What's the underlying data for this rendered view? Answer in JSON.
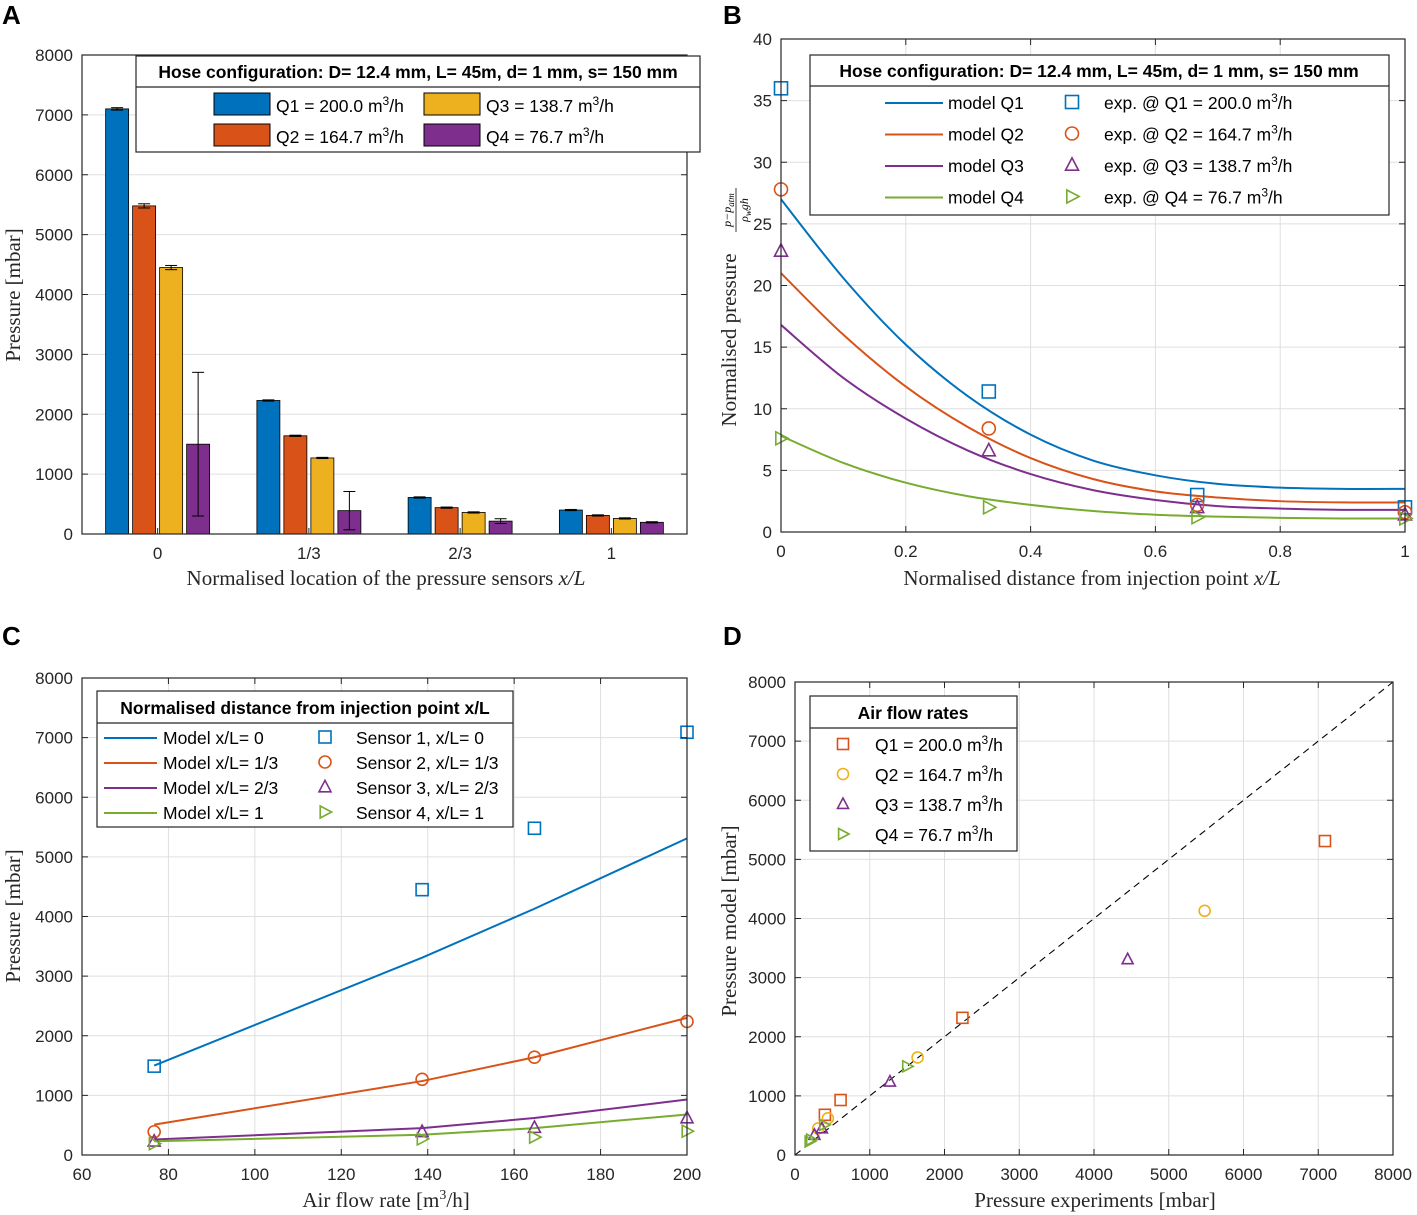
{
  "chart_data": [
    {
      "panel": "A",
      "type": "bar",
      "xlabel": "Normalised location of the pressure sensors",
      "xlabel_math": "x/L",
      "ylabel": "Pressure [mbar]",
      "ylim": [
        0,
        8000
      ],
      "yticks": [
        0,
        1000,
        2000,
        3000,
        4000,
        5000,
        6000,
        7000,
        8000
      ],
      "categories": [
        "0",
        "1/3",
        "2/3",
        "1"
      ],
      "legend_title": "Hose configuration: D= 12.4 mm, L= 45m, d= 1 mm, s= 150 mm",
      "series": [
        {
          "name": "Q1 = 200.0",
          "unit": "m",
          "sup": "3",
          "unit_tail": "/h",
          "color": "#0072BD",
          "values": [
            7100,
            2230,
            610,
            400
          ],
          "errors": [
            20,
            10,
            10,
            10
          ]
        },
        {
          "name": "Q2 = 164.7",
          "unit": "m",
          "sup": "3",
          "unit_tail": "/h",
          "color": "#D95319",
          "values": [
            5480,
            1640,
            440,
            310
          ],
          "errors": [
            35,
            10,
            10,
            10
          ]
        },
        {
          "name": "Q3 = 138.7",
          "unit": "m",
          "sup": "3",
          "unit_tail": "/h",
          "color": "#EDB120",
          "values": [
            4450,
            1270,
            360,
            260
          ],
          "errors": [
            35,
            10,
            10,
            10
          ]
        },
        {
          "name": "Q4 = 76.7",
          "unit": "m",
          "sup": "3",
          "unit_tail": "/h",
          "color": "#7E2F8E",
          "values": [
            1500,
            390,
            215,
            195
          ],
          "errors": [
            1200,
            320,
            40,
            10
          ]
        }
      ]
    },
    {
      "panel": "B",
      "type": "line",
      "xlabel": "Normalised distance from injection point",
      "xlabel_math": "x/L",
      "ylabel": "Normalised pressure",
      "xlim": [
        0,
        1
      ],
      "ylim": [
        0,
        40
      ],
      "xticks": [
        0,
        0.2,
        0.4,
        0.6,
        0.8,
        1
      ],
      "xticklabels": [
        "0",
        "0.2",
        "0.4",
        "0.6",
        "0.8",
        "1"
      ],
      "yticks": [
        0,
        5,
        10,
        15,
        20,
        25,
        30,
        35,
        40
      ],
      "legend_title": "Hose configuration: D= 12.4 mm, L= 45m, d= 1 mm, s= 150 mm",
      "model_x": [
        0,
        0.1,
        0.2,
        0.3,
        0.4,
        0.5,
        0.6,
        0.7,
        0.8,
        0.9,
        1.0
      ],
      "series": [
        {
          "name": "model Q1",
          "color": "#0072BD",
          "model_y": [
            27.0,
            20.6,
            15.2,
            11.0,
            7.9,
            5.8,
            4.6,
            3.9,
            3.6,
            3.5,
            3.5
          ],
          "exp_name": "exp. @ Q1 = 200.0",
          "marker": "square",
          "exp_x": [
            0,
            0.333,
            0.667,
            1.0
          ],
          "exp_y": [
            36.0,
            11.4,
            3.0,
            2.0
          ]
        },
        {
          "name": "model Q2",
          "color": "#D95319",
          "model_y": [
            21.0,
            16.0,
            11.8,
            8.5,
            6.0,
            4.3,
            3.3,
            2.8,
            2.5,
            2.4,
            2.4
          ],
          "exp_name": "exp. @ Q2 = 164.7",
          "marker": "circle",
          "exp_x": [
            0,
            0.333,
            0.667,
            1.0
          ],
          "exp_y": [
            27.8,
            8.4,
            2.2,
            1.6
          ]
        },
        {
          "name": "model Q3",
          "color": "#7E2F8E",
          "model_y": [
            16.8,
            12.5,
            9.2,
            6.6,
            4.7,
            3.4,
            2.6,
            2.1,
            1.9,
            1.8,
            1.8
          ],
          "exp_name": "exp. @ Q3 = 138.7",
          "marker": "triangle-up",
          "exp_x": [
            0,
            0.333,
            0.667,
            1.0
          ],
          "exp_y": [
            22.8,
            6.6,
            2.0,
            1.4
          ]
        },
        {
          "name": "model Q4",
          "color": "#77AC30",
          "model_y": [
            7.8,
            5.6,
            4.0,
            2.9,
            2.2,
            1.7,
            1.4,
            1.25,
            1.15,
            1.1,
            1.1
          ],
          "exp_name": "exp. @ Q4 = 76.7",
          "marker": "triangle-right",
          "exp_x": [
            0,
            0.333,
            0.667,
            1.0
          ],
          "exp_y": [
            7.6,
            2.0,
            1.2,
            1.1
          ]
        }
      ]
    },
    {
      "panel": "C",
      "type": "line",
      "xlabel": "Air flow rate",
      "xlabel_unit": "[m",
      "xlabel_sup": "3",
      "xlabel_tail": "/h]",
      "ylabel": "Pressure [mbar]",
      "xlim": [
        60,
        200
      ],
      "ylim": [
        0,
        8000
      ],
      "xticks": [
        60,
        80,
        100,
        120,
        140,
        160,
        180,
        200
      ],
      "yticks": [
        0,
        1000,
        2000,
        3000,
        4000,
        5000,
        6000,
        7000,
        8000
      ],
      "legend_title": "Normalised distance from injection point  x/L",
      "x": [
        76.7,
        138.7,
        164.7,
        200.0
      ],
      "series": [
        {
          "name": "Model x/L= 0",
          "sensor_name": "Sensor 1, x/L= 0",
          "color": "#0072BD",
          "marker": "square",
          "model": [
            1500,
            3310,
            4130,
            5310
          ],
          "sensor": [
            1490,
            4450,
            5480,
            7090
          ]
        },
        {
          "name": "Model x/L= 1/3",
          "sensor_name": "Sensor 2, x/L= 1/3",
          "color": "#D95319",
          "marker": "circle",
          "model": [
            510,
            1240,
            1640,
            2300
          ],
          "sensor": [
            390,
            1270,
            1640,
            2240
          ]
        },
        {
          "name": "Model x/L= 2/3",
          "sensor_name": "Sensor 3, x/L= 2/3",
          "color": "#7E2F8E",
          "marker": "triangle-up",
          "model": [
            260,
            450,
            620,
            930
          ],
          "sensor": [
            230,
            390,
            460,
            620
          ]
        },
        {
          "name": "Model x/L= 1",
          "sensor_name": "Sensor 4, x/L= 1",
          "color": "#77AC30",
          "marker": "triangle-right",
          "model": [
            230,
            340,
            450,
            680
          ],
          "sensor": [
            190,
            270,
            300,
            400
          ]
        }
      ]
    },
    {
      "panel": "D",
      "type": "scatter",
      "xlabel": "Pressure experiments [mbar]",
      "ylabel": "Pressure model [mbar]",
      "xlim": [
        0,
        8000
      ],
      "ylim": [
        0,
        8000
      ],
      "xticks": [
        0,
        1000,
        2000,
        3000,
        4000,
        5000,
        6000,
        7000,
        8000
      ],
      "yticks": [
        0,
        1000,
        2000,
        3000,
        4000,
        5000,
        6000,
        7000,
        8000
      ],
      "legend_title": "Air flow rates",
      "reference_line": "y = x",
      "series": [
        {
          "name": "Q1 = 200.0",
          "color": "#D95319",
          "marker": "square",
          "x": [
            7090,
            2240,
            610,
            400
          ],
          "y": [
            5310,
            2320,
            930,
            680
          ]
        },
        {
          "name": "Q2 = 164.7",
          "color": "#EDB120",
          "marker": "circle",
          "x": [
            5480,
            1640,
            440,
            310
          ],
          "y": [
            4130,
            1650,
            620,
            450
          ]
        },
        {
          "name": "Q3 = 138.7",
          "color": "#7E2F8E",
          "marker": "triangle-up",
          "x": [
            4450,
            1270,
            360,
            260
          ],
          "y": [
            3310,
            1240,
            450,
            340
          ]
        },
        {
          "name": "Q4 = 76.7",
          "color": "#77AC30",
          "marker": "triangle-right",
          "x": [
            1500,
            390,
            215,
            195
          ],
          "y": [
            1500,
            510,
            260,
            230
          ]
        }
      ]
    }
  ],
  "panel_tags": [
    "A",
    "B",
    "C",
    "D"
  ],
  "units": {
    "flow": "m",
    "sup": "3",
    "tail": "/h"
  }
}
